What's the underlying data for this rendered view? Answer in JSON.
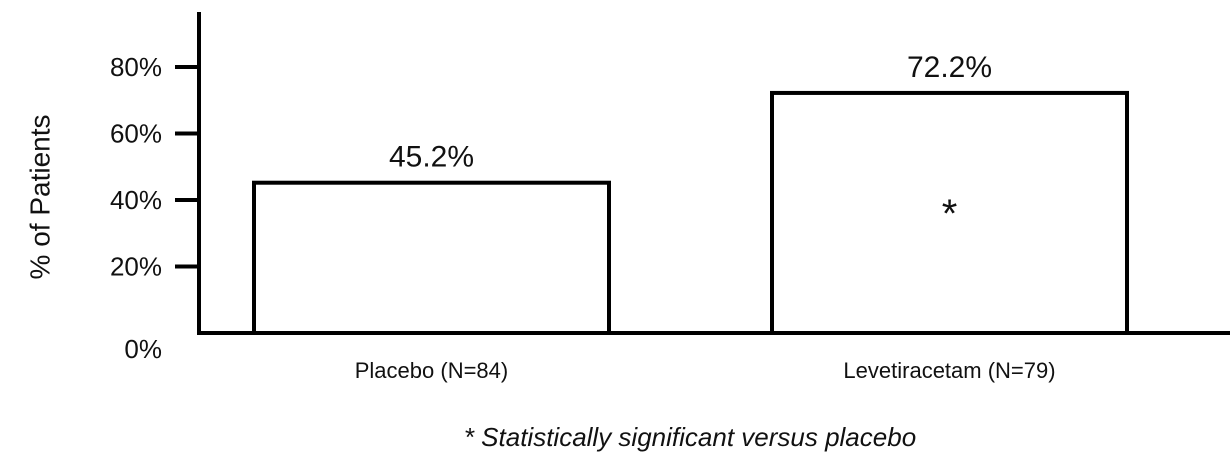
{
  "chart_data": {
    "type": "bar",
    "categories": [
      "Placebo (N=84)",
      "Levetiracetam (N=79)"
    ],
    "values": [
      45.2,
      72.2
    ],
    "value_labels": [
      "45.2%",
      "72.2%"
    ],
    "ylabel": "% of Patients",
    "xlabel": "",
    "ylim": [
      0,
      90
    ],
    "yticks": [
      0,
      20,
      40,
      60,
      80
    ],
    "ytick_labels": [
      "0%",
      "20%",
      "40%",
      "60%",
      "80%"
    ],
    "significance_mark": "*",
    "significant_category": "Levetiracetam (N=79)",
    "grid": false,
    "bar_fill": "#ffffff",
    "bar_stroke": "#000000"
  },
  "footnote": "* Statistically significant versus placebo"
}
